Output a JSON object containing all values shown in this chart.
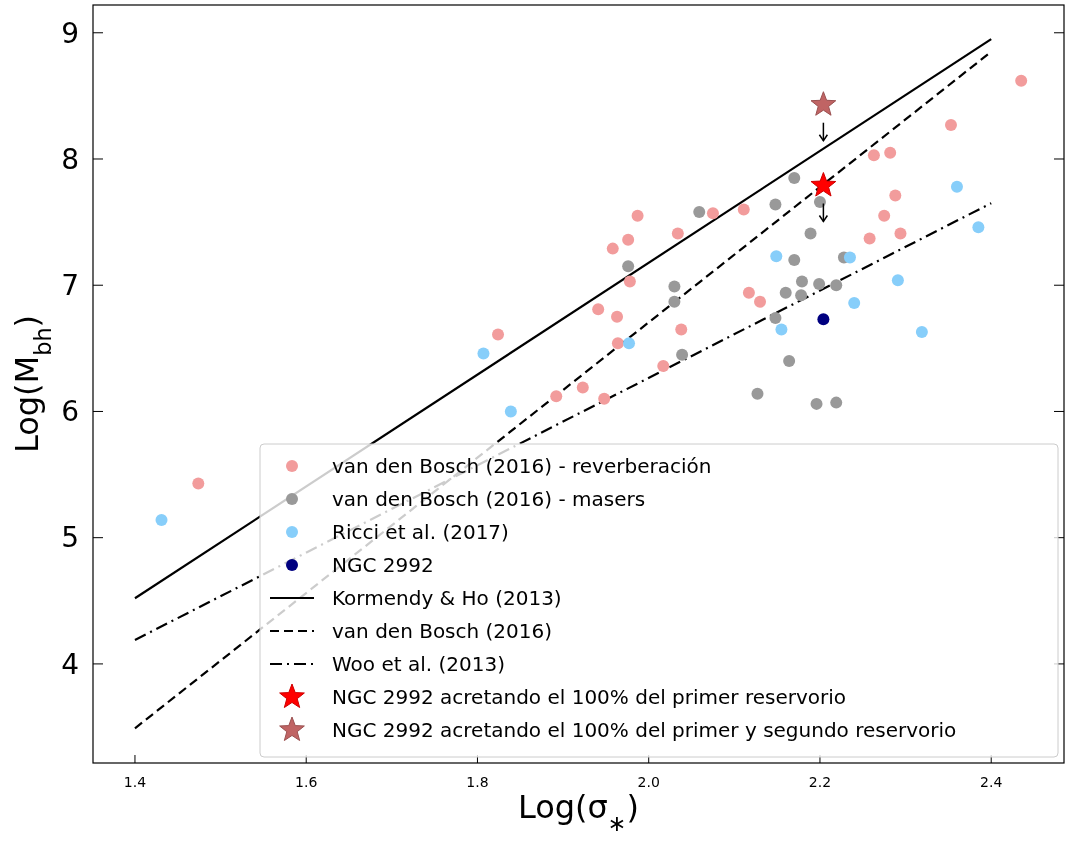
{
  "chart_data": {
    "type": "scatter",
    "xlabel": "Log(σ$_{∗}$)",
    "ylabel": "Log(M$_{bh}$)",
    "xlim": [
      1.351,
      2.485
    ],
    "ylim": [
      3.215,
      9.22
    ],
    "xticks": [
      {
        "value": 1.4,
        "label": "1.4"
      },
      {
        "value": 1.6,
        "label": "1.6"
      },
      {
        "value": 1.8,
        "label": "1.8"
      },
      {
        "value": 2.0,
        "label": "2.0"
      },
      {
        "value": 2.2,
        "label": "2.2"
      },
      {
        "value": 2.4,
        "label": "2.4"
      }
    ],
    "yticks": [
      4,
      5,
      6,
      7,
      8,
      9
    ],
    "grid": false,
    "legend": "bottom right",
    "series": [
      {
        "name": "van den Bosch (2016) - reverberación",
        "marker": "circle",
        "color": "#f29c9c",
        "x": [
          1.474,
          1.824,
          1.892,
          1.923,
          1.948,
          1.941,
          1.963,
          1.964,
          1.958,
          1.976,
          1.987,
          1.978,
          2.034,
          2.075,
          2.038,
          2.017,
          2.111,
          2.117,
          2.13,
          2.263,
          2.282,
          2.353,
          2.435,
          2.288,
          2.275,
          2.258,
          2.294
        ],
        "values": [
          5.43,
          6.61,
          6.12,
          6.19,
          6.1,
          6.81,
          6.75,
          6.54,
          7.29,
          7.36,
          7.55,
          7.03,
          7.41,
          7.57,
          6.65,
          6.36,
          7.6,
          6.94,
          6.87,
          8.03,
          8.05,
          8.27,
          8.62,
          7.71,
          7.55,
          7.37,
          7.41
        ]
      },
      {
        "name": "van den Bosch (2016) - masers",
        "marker": "circle",
        "color": "#999999",
        "x": [
          2.17,
          2.148,
          2.2,
          2.189,
          2.17,
          2.228,
          2.179,
          2.199,
          2.219,
          2.16,
          2.178,
          2.148,
          2.164,
          2.127,
          2.196,
          2.219,
          2.059,
          1.976,
          2.03,
          2.03,
          2.039
        ],
        "values": [
          7.85,
          7.64,
          7.66,
          7.41,
          7.2,
          7.22,
          7.03,
          7.01,
          7.0,
          6.94,
          6.92,
          6.74,
          6.4,
          6.14,
          6.06,
          6.07,
          7.58,
          7.15,
          6.99,
          6.87,
          6.45
        ]
      },
      {
        "name": "Ricci et al. (2017)",
        "marker": "circle",
        "color": "#87cefa",
        "x": [
          1.431,
          1.807,
          1.839,
          1.977,
          2.149,
          2.235,
          2.36,
          2.385,
          2.291,
          2.24,
          2.155,
          2.319
        ],
        "values": [
          5.14,
          6.46,
          6.0,
          6.54,
          7.23,
          7.22,
          7.78,
          7.46,
          7.04,
          6.86,
          6.65,
          6.63
        ]
      },
      {
        "name": "NGC 2992",
        "marker": "circle",
        "color": "#000080",
        "x": [
          2.204
        ],
        "values": [
          6.73
        ]
      },
      {
        "name": "Kormendy & Ho (2013)",
        "type": "line",
        "marker": "none",
        "line_style": "solid",
        "color": "#000000",
        "x": [
          1.4,
          2.4
        ],
        "values": [
          4.52,
          8.95
        ]
      },
      {
        "name": "van den Bosch (2016)",
        "type": "line",
        "marker": "none",
        "line_style": "dashed",
        "color": "#000000",
        "x": [
          1.4,
          2.4
        ],
        "values": [
          3.49,
          8.85
        ]
      },
      {
        "name": "Woo et al. (2013)",
        "type": "line",
        "marker": "none",
        "line_style": "dashdot",
        "color": "#000000",
        "x": [
          1.4,
          2.4
        ],
        "values": [
          4.19,
          7.65
        ]
      },
      {
        "name": "NGC 2992 acretando el 100% del primer reservorio",
        "marker": "star",
        "color": "#ff0000",
        "x": [
          2.204
        ],
        "values": [
          7.79
        ]
      },
      {
        "name": "NGC 2992 acretando el 100% del primer y segundo reservorio",
        "marker": "star",
        "color": "#c06464",
        "x": [
          2.204
        ],
        "values": [
          8.43
        ]
      }
    ]
  }
}
